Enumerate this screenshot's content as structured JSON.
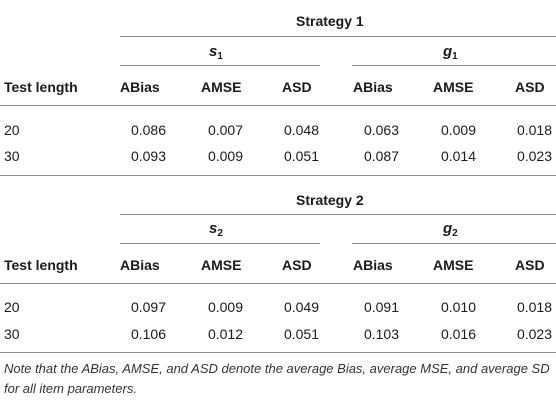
{
  "tables": [
    {
      "strategy": "Strategy 1",
      "param_left": {
        "symbol": "s",
        "sub": "1"
      },
      "param_right": {
        "symbol": "g",
        "sub": "1"
      },
      "row_header": "Test length",
      "columns": [
        "ABias",
        "AMSE",
        "ASD",
        "ABias",
        "AMSE",
        "ASD"
      ],
      "rows": [
        {
          "length": "20",
          "values": [
            "0.086",
            "0.007",
            "0.048",
            "0.063",
            "0.009",
            "0.018"
          ]
        },
        {
          "length": "30",
          "values": [
            "0.093",
            "0.009",
            "0.051",
            "0.087",
            "0.014",
            "0.023"
          ]
        }
      ]
    },
    {
      "strategy": "Strategy 2",
      "param_left": {
        "symbol": "s",
        "sub": "2"
      },
      "param_right": {
        "symbol": "g",
        "sub": "2"
      },
      "row_header": "Test length",
      "columns": [
        "ABias",
        "AMSE",
        "ASD",
        "ABias",
        "AMSE",
        "ASD"
      ],
      "rows": [
        {
          "length": "20",
          "values": [
            "0.097",
            "0.009",
            "0.049",
            "0.091",
            "0.010",
            "0.018"
          ]
        },
        {
          "length": "30",
          "values": [
            "0.106",
            "0.012",
            "0.051",
            "0.103",
            "0.016",
            "0.023"
          ]
        }
      ]
    }
  ],
  "note": "Note that the ABias, AMSE, and ASD denote the average Bias, average MSE, and average SD for all item parameters."
}
